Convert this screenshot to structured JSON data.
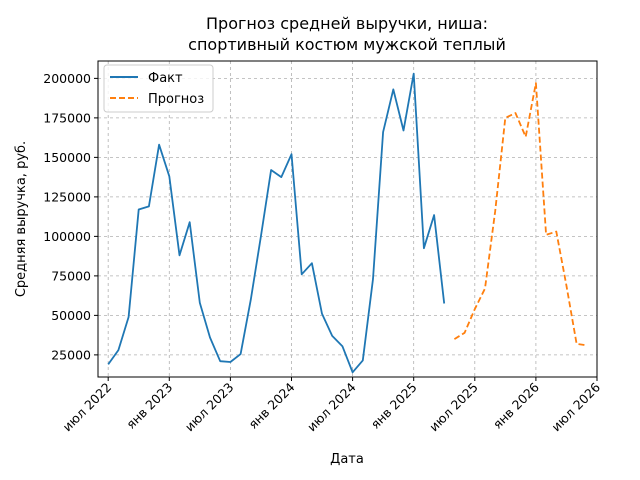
{
  "chart_data": {
    "type": "line",
    "title_lines": [
      "Прогноз средней выручки, ниша:",
      "спортивный костюм мужской теплый"
    ],
    "xlabel": "Дата",
    "ylabel": "Средняя выручка, руб.",
    "x_tick_labels": [
      "июл 2022",
      "янв 2023",
      "июл 2023",
      "янв 2024",
      "июл 2024",
      "янв 2025",
      "июл 2025",
      "янв 2026",
      "июл 2026"
    ],
    "x_ticks": [
      "2022-07",
      "2023-01",
      "2023-07",
      "2024-01",
      "2024-07",
      "2025-01",
      "2025-07",
      "2026-01",
      "2026-07"
    ],
    "xlim": [
      "2022-06",
      "2026-07"
    ],
    "y_ticks": [
      25000,
      50000,
      75000,
      100000,
      125000,
      150000,
      175000,
      200000
    ],
    "y_tick_labels": [
      "25000",
      "50000",
      "75000",
      "100000",
      "125000",
      "150000",
      "175000",
      "200000"
    ],
    "ylim": [
      11000,
      211000
    ],
    "grid": true,
    "legend_position": "top-left",
    "series": [
      {
        "name": "Факт",
        "color": "#1f77b4",
        "style": "solid",
        "x": [
          "2022-07",
          "2022-08",
          "2022-09",
          "2022-10",
          "2022-11",
          "2022-12",
          "2023-01",
          "2023-02",
          "2023-03",
          "2023-04",
          "2023-05",
          "2023-06",
          "2023-07",
          "2023-08",
          "2023-09",
          "2023-10",
          "2023-11",
          "2023-12",
          "2024-01",
          "2024-02",
          "2024-03",
          "2024-04",
          "2024-05",
          "2024-06",
          "2024-07",
          "2024-08",
          "2024-09",
          "2024-10",
          "2024-11",
          "2024-12",
          "2025-01",
          "2025-02",
          "2025-03",
          "2025-04"
        ],
        "values": [
          19000,
          28000,
          49000,
          117000,
          119000,
          158000,
          138000,
          88000,
          109000,
          58000,
          36000,
          21000,
          20500,
          25500,
          60000,
          100000,
          142000,
          137500,
          152000,
          76000,
          83000,
          51000,
          37000,
          30500,
          14000,
          21500,
          73000,
          166000,
          193000,
          167000,
          203000,
          92500,
          113500,
          57500
        ]
      },
      {
        "name": "Прогноз",
        "color": "#ff7f0e",
        "style": "dashed",
        "x": [
          "2025-05",
          "2025-06",
          "2025-07",
          "2025-08",
          "2025-09",
          "2025-10",
          "2025-11",
          "2025-12",
          "2026-01",
          "2026-02",
          "2026-03",
          "2026-04",
          "2026-05",
          "2026-06"
        ],
        "values": [
          35000,
          39000,
          54000,
          67000,
          116000,
          175000,
          178000,
          163000,
          197000,
          101000,
          103000,
          69000,
          32000,
          31000
        ]
      }
    ]
  }
}
